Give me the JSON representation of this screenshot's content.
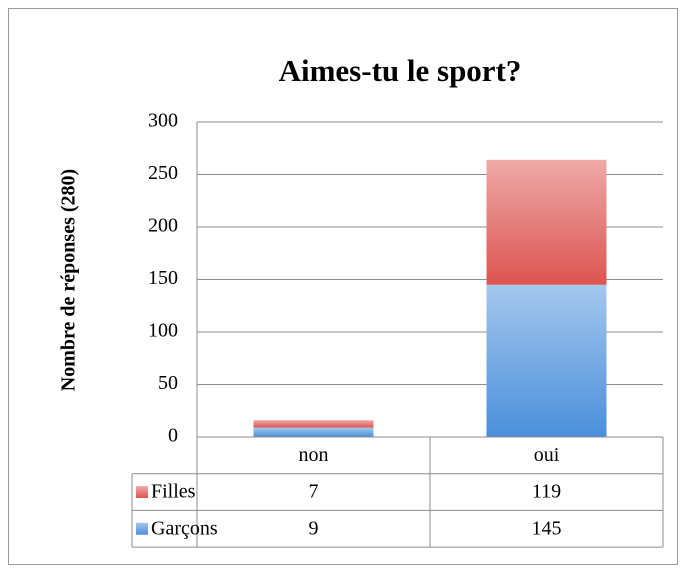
{
  "chart_data": {
    "type": "stacked_bar",
    "title": "Aimes-tu le sport?",
    "y_label": "Nombre de réponses (280)",
    "categories": [
      "non",
      "oui"
    ],
    "series": [
      {
        "name": "Garçons",
        "color": "#4a8fdb",
        "values": [
          9,
          145
        ]
      },
      {
        "name": "Filles",
        "color": "#dc5450",
        "values": [
          7,
          119
        ]
      }
    ],
    "ylim": [
      0,
      300
    ],
    "yticks": [
      0,
      50,
      100,
      150,
      200,
      250,
      300
    ],
    "grid": true,
    "data_table": true
  }
}
